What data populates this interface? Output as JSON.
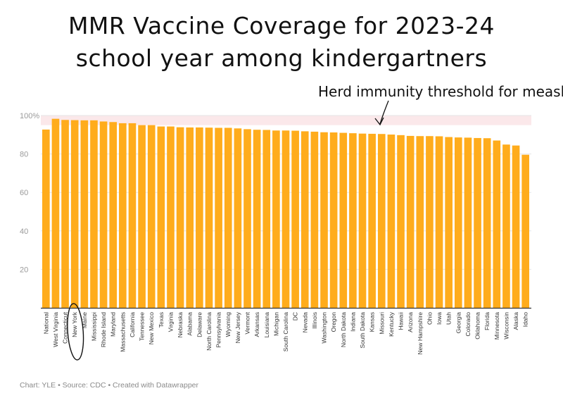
{
  "title_line1": "MMR Vaccine Coverage for 2023-24",
  "title_line2": "school year among kindergartners",
  "annotation": "Herd immunity threshold for measles",
  "footer": "Chart: YLE • Source: CDC • Created with Datawrapper",
  "colors": {
    "bar": "#FFAC1C",
    "band": "#FBE8EA",
    "grid": "#e6e6e6",
    "axis": "#333333"
  },
  "chart_data": {
    "type": "bar",
    "title": "MMR Vaccine Coverage for 2023-24 school year among kindergartners",
    "xlabel": "",
    "ylabel": "",
    "ylim": [
      0,
      100
    ],
    "yticks": [
      20,
      40,
      60,
      80,
      100
    ],
    "ytick_labels": [
      "20",
      "40",
      "60",
      "80",
      "100%"
    ],
    "band": {
      "from": 95,
      "to": 100,
      "label": "Herd immunity threshold for measles"
    },
    "highlighted_category": "New York",
    "categories": [
      "National",
      "West Virginia",
      "Connecticut",
      "New York",
      "Maine",
      "Mississippi",
      "Rhode Island",
      "Maryland",
      "Massachusetts",
      "California",
      "Tennessee",
      "New Mexico",
      "Texas",
      "Virginia",
      "Nebraska",
      "Alabama",
      "Delaware",
      "North Carolina",
      "Pennsylvania",
      "Wyoming",
      "New Jersey",
      "Vermont",
      "Arkansas",
      "Louisiana",
      "Michigan",
      "South Carolina",
      "DC",
      "Nevada",
      "Illinois",
      "Washington",
      "Oregon",
      "North Dakota",
      "Indiana",
      "South Dakota",
      "Kansas",
      "Missouri",
      "Kentucky",
      "Hawaii",
      "Arizona",
      "New Hampshire",
      "Ohio",
      "Iowa",
      "Utah",
      "Georgia",
      "Colorado",
      "Oklahoma",
      "Florida",
      "Minnesota",
      "Wisconsin",
      "Alaska",
      "Idaho"
    ],
    "values": [
      92.7,
      98.3,
      97.7,
      97.6,
      97.5,
      97.5,
      96.9,
      96.6,
      96.0,
      96.0,
      95.0,
      95.0,
      94.3,
      94.3,
      93.9,
      93.8,
      93.8,
      93.7,
      93.6,
      93.6,
      93.3,
      92.9,
      92.6,
      92.5,
      92.2,
      92.2,
      92.1,
      91.8,
      91.6,
      91.3,
      91.2,
      91.0,
      90.8,
      90.6,
      90.5,
      90.4,
      90.1,
      89.8,
      89.4,
      89.3,
      89.3,
      89.2,
      88.8,
      88.6,
      88.5,
      88.3,
      88.2,
      87.0,
      84.9,
      84.4,
      79.6
    ]
  }
}
